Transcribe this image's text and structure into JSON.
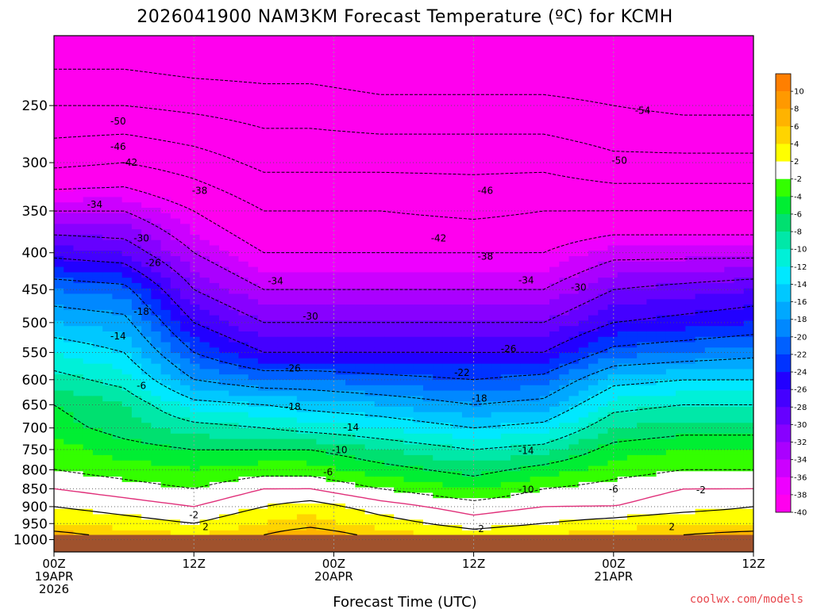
{
  "chart_data": {
    "type": "heatmap",
    "title": "2026041900 NAM3KM Forecast Temperature (ºC) for KCMH",
    "xlabel": "Forecast Time (UTC)",
    "ylabel": "",
    "x_ticks": [
      {
        "hour": 0,
        "lines": [
          "00Z",
          "19APR",
          "2026"
        ]
      },
      {
        "hour": 12,
        "lines": [
          "12Z"
        ]
      },
      {
        "hour": 24,
        "lines": [
          "00Z",
          "20APR"
        ]
      },
      {
        "hour": 36,
        "lines": [
          "12Z"
        ]
      },
      {
        "hour": 48,
        "lines": [
          "00Z",
          "21APR"
        ]
      },
      {
        "hour": 60,
        "lines": [
          "12Z"
        ]
      }
    ],
    "xlim": [
      0,
      60
    ],
    "y_axis": "pressure (hPa), log scale, inverted",
    "ylim": [
      1040,
      200
    ],
    "y_ticks": [
      250,
      300,
      350,
      400,
      450,
      500,
      550,
      600,
      650,
      700,
      750,
      800,
      850,
      900,
      950,
      1000
    ],
    "ground_level_hpa": 985,
    "colorbar": {
      "boundaries": [
        12,
        10,
        8,
        6,
        4,
        2,
        -2,
        -4,
        -6,
        -8,
        -10,
        -12,
        -14,
        -16,
        -18,
        -20,
        -22,
        -24,
        -26,
        -28,
        -30,
        -32,
        -34,
        -36,
        -38,
        -40,
        -42
      ],
      "labels": [
        "10",
        "8",
        "6",
        "4",
        "2",
        "-2",
        "-4",
        "-6",
        "-8",
        "-10",
        "-12",
        "-14",
        "-16",
        "-18",
        "-20",
        "-22",
        "-24",
        "-26",
        "-28",
        "-30",
        "-32",
        "-34",
        "-36",
        "-38",
        "-40"
      ]
    },
    "profile_levels_hpa": [
      985,
      950,
      900,
      850,
      800,
      750,
      700,
      650,
      600,
      550,
      500,
      450,
      400,
      350,
      300,
      250,
      210
    ],
    "profiles": [
      {
        "hour": 0,
        "temps": [
          7,
          4,
          2,
          0,
          -2,
          -3,
          -5,
          -6,
          -9,
          -12,
          -16,
          -20,
          -27,
          -34,
          -43,
          -50,
          -56
        ]
      },
      {
        "hour": 6,
        "temps": [
          5,
          3,
          1,
          -1,
          -3,
          -5,
          -7,
          -8,
          -11,
          -14,
          -17,
          -21,
          -28,
          -34,
          -42,
          -50,
          -56
        ]
      },
      {
        "hour": 12,
        "temps": [
          4,
          2,
          0,
          -2,
          -4,
          -6,
          -9,
          -13,
          -18,
          -22,
          -26,
          -30,
          -34,
          -38,
          -44,
          -51,
          -57
        ]
      },
      {
        "hour": 18,
        "temps": [
          6,
          4,
          2,
          0,
          -3,
          -6,
          -10,
          -14,
          -20,
          -26,
          -30,
          -34,
          -38,
          -42,
          -47,
          -52,
          -57
        ]
      },
      {
        "hour": 22,
        "temps": [
          8,
          5,
          3,
          0,
          -3,
          -6,
          -11,
          -15,
          -20,
          -26,
          -30,
          -34,
          -38,
          -42,
          -47,
          -52,
          -57
        ]
      },
      {
        "hour": 28,
        "temps": [
          5,
          3,
          1,
          -2,
          -5,
          -8,
          -12,
          -16,
          -21,
          -26,
          -30,
          -34,
          -38,
          -42,
          -47,
          -53,
          -58
        ]
      },
      {
        "hour": 36,
        "temps": [
          3,
          1,
          -1,
          -4,
          -7,
          -10,
          -14,
          -18,
          -22,
          -26,
          -30,
          -34,
          -38,
          -43,
          -47,
          -53,
          -58
        ]
      },
      {
        "hour": 42,
        "temps": [
          4,
          2,
          0,
          -2,
          -5,
          -9,
          -13,
          -17,
          -21,
          -26,
          -30,
          -34,
          -38,
          -42,
          -47,
          -53,
          -58
        ]
      },
      {
        "hour": 48,
        "temps": [
          5,
          3,
          0,
          -1,
          -3,
          -5,
          -8,
          -11,
          -15,
          -21,
          -26,
          -30,
          -35,
          -42,
          -49,
          -54,
          -58
        ]
      },
      {
        "hour": 54,
        "temps": [
          6,
          4,
          1,
          0,
          -2,
          -4,
          -7,
          -10,
          -14,
          -20,
          -25,
          -29,
          -35,
          -42,
          -49,
          -55,
          -59
        ]
      },
      {
        "hour": 60,
        "temps": [
          7,
          4,
          2,
          0,
          -2,
          -4,
          -7,
          -10,
          -14,
          -19,
          -24,
          -28,
          -35,
          -42,
          -49,
          -55,
          -59
        ]
      }
    ],
    "contour_labels": [
      {
        "value": "-54",
        "hour": 50.5,
        "hpa": 254
      },
      {
        "value": "-50",
        "hour": 5.5,
        "hpa": 263
      },
      {
        "value": "-50",
        "hour": 48.5,
        "hpa": 298
      },
      {
        "value": "-46",
        "hour": 5.5,
        "hpa": 285
      },
      {
        "value": "-46",
        "hour": 37,
        "hpa": 328
      },
      {
        "value": "-42",
        "hour": 6.5,
        "hpa": 300
      },
      {
        "value": "-42",
        "hour": 33,
        "hpa": 382
      },
      {
        "value": "-38",
        "hour": 12.5,
        "hpa": 328
      },
      {
        "value": "-38",
        "hour": 37,
        "hpa": 405
      },
      {
        "value": "-34",
        "hour": 3.5,
        "hpa": 343
      },
      {
        "value": "-34",
        "hour": 19,
        "hpa": 438
      },
      {
        "value": "-34",
        "hour": 40.5,
        "hpa": 437
      },
      {
        "value": "-30",
        "hour": 7.5,
        "hpa": 382
      },
      {
        "value": "-30",
        "hour": 22,
        "hpa": 490
      },
      {
        "value": "-30",
        "hour": 45,
        "hpa": 447
      },
      {
        "value": "-26",
        "hour": 8.5,
        "hpa": 413
      },
      {
        "value": "-26",
        "hour": 20.5,
        "hpa": 579
      },
      {
        "value": "-26",
        "hour": 39,
        "hpa": 544
      },
      {
        "value": "-22",
        "hour": 35,
        "hpa": 587
      },
      {
        "value": "-18",
        "hour": 7.5,
        "hpa": 483
      },
      {
        "value": "-18",
        "hour": 20.5,
        "hpa": 654
      },
      {
        "value": "-18",
        "hour": 36.5,
        "hpa": 637
      },
      {
        "value": "-14",
        "hour": 5.5,
        "hpa": 522
      },
      {
        "value": "-14",
        "hour": 25.5,
        "hpa": 699
      },
      {
        "value": "-14",
        "hour": 40.5,
        "hpa": 753
      },
      {
        "value": "-10",
        "hour": 24.5,
        "hpa": 751
      },
      {
        "value": "-10",
        "hour": 40.5,
        "hpa": 853
      },
      {
        "value": "-6",
        "hour": 7.5,
        "hpa": 612
      },
      {
        "value": "-6",
        "hour": 23.5,
        "hpa": 806
      },
      {
        "value": "-6",
        "hour": 48,
        "hpa": 851
      },
      {
        "value": "-2",
        "hour": 12,
        "hpa": 924
      },
      {
        "value": "-2",
        "hour": 36.5,
        "hpa": 966
      },
      {
        "value": "-2",
        "hour": 55.5,
        "hpa": 854
      },
      {
        "value": "2",
        "hour": 13,
        "hpa": 960
      },
      {
        "value": "2",
        "hour": 53,
        "hpa": 960
      }
    ]
  },
  "credit": "coolwx.com/models",
  "colors": {
    "ground": "#a0522d",
    "freezing_line": "#e0307a",
    "background": "#ffffff"
  }
}
